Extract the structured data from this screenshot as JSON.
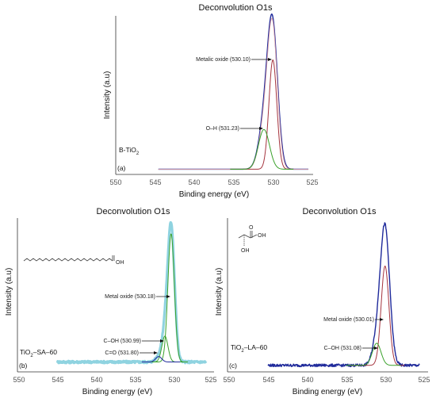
{
  "chart_data": [
    {
      "type": "line",
      "panel": "(a)",
      "title": "Deconvolution O1s",
      "xlabel": "Binding energy (eV)",
      "ylabel": "Intensity (a.u)",
      "xlim": [
        550,
        525
      ],
      "x_ticks": [
        "550",
        "545",
        "540",
        "535",
        "530",
        "525"
      ],
      "sample": {
        "main": "B-TiO",
        "sub": "2"
      },
      "annotations": [
        {
          "text": "Metalic oxide (530.10)",
          "x": 530.1
        },
        {
          "text": "O–H (531.23)",
          "x": 531.23
        }
      ],
      "series": [
        {
          "component": "envelope",
          "color": "#1f2a9b",
          "width": 1.4,
          "peaks": [
            [
              530.15,
              1.0,
              0.65
            ],
            [
              531.23,
              0.28,
              0.7
            ]
          ],
          "base": 0.02,
          "x_range": [
            544.6,
            525.6
          ],
          "noise": 0
        },
        {
          "component": "fit",
          "color": "#d9a0a6",
          "width": 0.9,
          "peaks": [
            [
              530.15,
              0.98,
              0.62
            ],
            [
              531.23,
              0.27,
              0.68
            ]
          ],
          "base": 0.02,
          "x_range": [
            544.6,
            525.6
          ],
          "noise": 0
        },
        {
          "component": "Metalic oxide",
          "color": "#a5343e",
          "width": 1.0,
          "peaks": [
            [
              530.1,
              0.77,
              0.5
            ]
          ],
          "base": 0.02,
          "x_range": [
            535.5,
            527.5
          ],
          "noise": 0
        },
        {
          "component": "O–H",
          "color": "#3aa12b",
          "width": 1.0,
          "peaks": [
            [
              531.23,
              0.28,
              0.7
            ]
          ],
          "base": 0.02,
          "x_range": [
            535.5,
            527.5
          ],
          "noise": 0
        }
      ]
    },
    {
      "type": "line",
      "panel": "(b)",
      "title": "Deconvolution O1s",
      "xlabel": "Binding energy (eV)",
      "ylabel": "Intensity (a.u)",
      "xlim": [
        550,
        525
      ],
      "x_ticks": [
        "550",
        "545",
        "540",
        "535",
        "530",
        "525"
      ],
      "sample": {
        "main": "TiO",
        "sub": "2",
        "tail": "–SA–60"
      },
      "annotations": [
        {
          "text": "Metal oxide (530.18)",
          "x": 530.18
        },
        {
          "text": "C–OH (530.99)",
          "x": 530.99
        },
        {
          "text": "C=O (531.80)",
          "x": 531.8
        }
      ],
      "series": [
        {
          "component": "envelope",
          "color": "#8fd3e0",
          "width": 3.2,
          "peaks": [
            [
              530.18,
              1.0,
              0.45
            ],
            [
              530.99,
              0.19,
              0.4
            ],
            [
              531.8,
              0.04,
              0.4
            ]
          ],
          "base": 0.055,
          "x_range": [
            545,
            525.6
          ],
          "noise": 0.008
        },
        {
          "component": "Metal oxide",
          "color": "#3aa12b",
          "width": 1.0,
          "peaks": [
            [
              530.18,
              0.94,
              0.42
            ]
          ],
          "base": 0.055,
          "x_range": [
            533.5,
            528
          ],
          "noise": 0
        },
        {
          "component": "C–OH",
          "color": "#3aa12b",
          "width": 1.0,
          "peaks": [
            [
              530.99,
              0.19,
              0.4
            ]
          ],
          "base": 0.055,
          "x_range": [
            533.5,
            528.5
          ],
          "noise": 0
        },
        {
          "component": "C=O",
          "color": "#1f2a9b",
          "width": 1.0,
          "peaks": [
            [
              531.8,
              0.04,
              0.4
            ]
          ],
          "base": 0.055,
          "x_range": [
            534,
            529
          ],
          "noise": 0
        }
      ]
    },
    {
      "type": "line",
      "panel": "(c)",
      "title": "Deconvolution O1s",
      "xlabel": "Binding energy (eV)",
      "ylabel": "Intensity (a.u)",
      "xlim": [
        550,
        525
      ],
      "x_ticks": [
        "550",
        "545",
        "540",
        "535",
        "530",
        "525"
      ],
      "sample": {
        "main": "TiO",
        "sub": "2",
        "tail": "–LA–60"
      },
      "annotations": [
        {
          "text": "Metal oxide (530.01)",
          "x": 530.01
        },
        {
          "text": "C–OH (531.08)",
          "x": 531.08
        }
      ],
      "series": [
        {
          "component": "envelope",
          "color": "#1f2a9b",
          "width": 1.4,
          "peaks": [
            [
              530.02,
              1.0,
              0.6
            ],
            [
              531.08,
              0.16,
              0.55
            ]
          ],
          "base": 0.03,
          "x_range": [
            545,
            525.6
          ],
          "noise": 0.01
        },
        {
          "component": "Metal oxide",
          "color": "#a5343e",
          "width": 1.0,
          "peaks": [
            [
              530.01,
              0.72,
              0.5
            ]
          ],
          "base": 0.03,
          "x_range": [
            534.5,
            527.5
          ],
          "noise": 0
        },
        {
          "component": "C–OH",
          "color": "#3aa12b",
          "width": 1.0,
          "peaks": [
            [
              531.08,
              0.16,
              0.55
            ]
          ],
          "base": 0.03,
          "x_range": [
            535,
            528
          ],
          "noise": 0
        }
      ]
    }
  ],
  "molecules": {
    "lactic_acid": {
      "oh_top": "OH",
      "oh_bottom": "OH",
      "o": "O"
    },
    "stearic_acid": {
      "label": "OH"
    }
  }
}
